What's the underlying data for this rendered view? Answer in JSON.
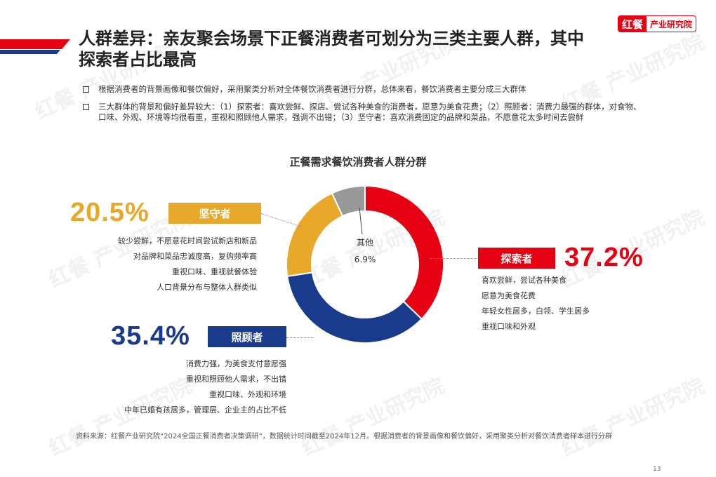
{
  "brand": {
    "mark": "红餐",
    "name": "产业研究院"
  },
  "title": {
    "line1": "人群差异：亲友聚会场景下正餐消费者可划分为三类主要人群，其中",
    "line2": "探索者占比最高"
  },
  "bullets": [
    "根据消费者的背景画像和餐饮偏好，采用聚类分析对全体餐饮消费者进行分群，总体来看，餐饮消费者主要分成三大群体",
    "三大群体的背景和偏好差异较大：（1）探索者：喜欢尝鲜、探店、尝试各种美食的消费者，愿意为美食花费；（2）照顾者：消费力最强的群体，对食物、口味、外观、环境等均很看重，重视和照顾他人需求，强调不出错；（3）坚守者：喜欢消费固定的品牌和菜品，不愿意花太多时间去尝鲜"
  ],
  "colors": {
    "red": "#e50012",
    "navy": "#1a3a8c",
    "gold": "#e8a82a",
    "gray": "#999999"
  },
  "groups": {
    "keeper": {
      "pct": "20.5%",
      "tag": "坚守者",
      "lines": [
        "较少尝鲜，不愿意花时间尝试新店和新品",
        "对品牌和菜品忠诚度高，复购频率高",
        "重视口味、重视就餐体验",
        "人口背景分布与整体人群类似"
      ]
    },
    "explorer": {
      "pct": "37.2%",
      "tag": "探索者",
      "lines": [
        "喜欢尝鲜，尝试各种美食",
        "愿意为美食花费",
        "年轻女性居多，白领、学生居多",
        "重视口味和外观"
      ]
    },
    "caregiver": {
      "pct": "35.4%",
      "tag": "照顾者",
      "lines": [
        "消费力强，为美食支付意愿强",
        "重视和照顾他人需求，不出错",
        "重视口味、外观和环境",
        "中年已婚有孩居多，管理层、企业主的占比不低"
      ]
    },
    "other": {
      "label": "其他",
      "pct": "6.9%"
    }
  },
  "chart_data": {
    "type": "pie",
    "title": "正餐需求餐饮消费者人群分群",
    "categories": [
      "探索者",
      "照顾者",
      "坚守者",
      "其他"
    ],
    "values": [
      37.2,
      35.4,
      20.5,
      6.9
    ],
    "colors": [
      "#e50012",
      "#1a3a8c",
      "#e8a82a",
      "#999999"
    ],
    "unit": "%",
    "donut": true
  },
  "source": "资料来源：红餐产业研究院“2024全国正餐消费者决策调研”，数据统计时间截至2024年12月。根据消费者的背景画像和餐饮偏好，采用聚类分析对餐饮消费者样本进行分群",
  "page": "13",
  "watermark": "红餐 产业研究院"
}
